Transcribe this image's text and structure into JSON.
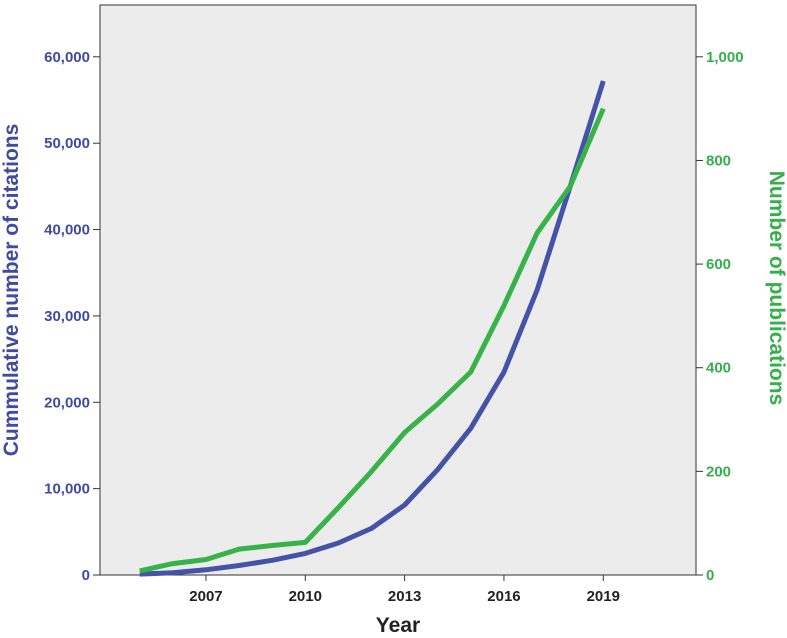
{
  "chart_data": {
    "type": "line",
    "xlabel": "Year",
    "ylabel_left": "Cummulative number of citations",
    "ylabel_right": "Number of publications",
    "x": [
      2005,
      2006,
      2007,
      2008,
      2009,
      2010,
      2011,
      2012,
      2013,
      2014,
      2015,
      2016,
      2017,
      2018,
      2019
    ],
    "x_ticks": [
      2007,
      2010,
      2013,
      2016,
      2019
    ],
    "x_tick_labels": [
      "2007",
      "2010",
      "2013",
      "2016",
      "2019"
    ],
    "xlim": [
      2003.8,
      2021.8
    ],
    "ylim_left": [
      0,
      66000
    ],
    "ylim_right": [
      0,
      1100
    ],
    "y_ticks_left": [
      0,
      10000,
      20000,
      30000,
      40000,
      50000,
      60000
    ],
    "y_tick_labels_left": [
      "0",
      "10,000",
      "20,000",
      "30,000",
      "40,000",
      "50,000",
      "60,000"
    ],
    "y_ticks_right": [
      0,
      200,
      400,
      600,
      800,
      1000
    ],
    "y_tick_labels_right": [
      "0",
      "200",
      "400",
      "600",
      "800",
      "1,000"
    ],
    "series": [
      {
        "axis": "left",
        "color": "#4453a8",
        "values": [
          100,
          250,
          600,
          1100,
          1700,
          2500,
          3700,
          5400,
          8100,
          12200,
          17000,
          23500,
          33000,
          45000,
          57200
        ]
      },
      {
        "axis": "right",
        "color": "#37b34a",
        "values": [
          8,
          22,
          30,
          50,
          57,
          63,
          130,
          200,
          275,
          330,
          392,
          520,
          660,
          750,
          900
        ]
      }
    ],
    "grid": false,
    "plot_background": "#ececec"
  }
}
